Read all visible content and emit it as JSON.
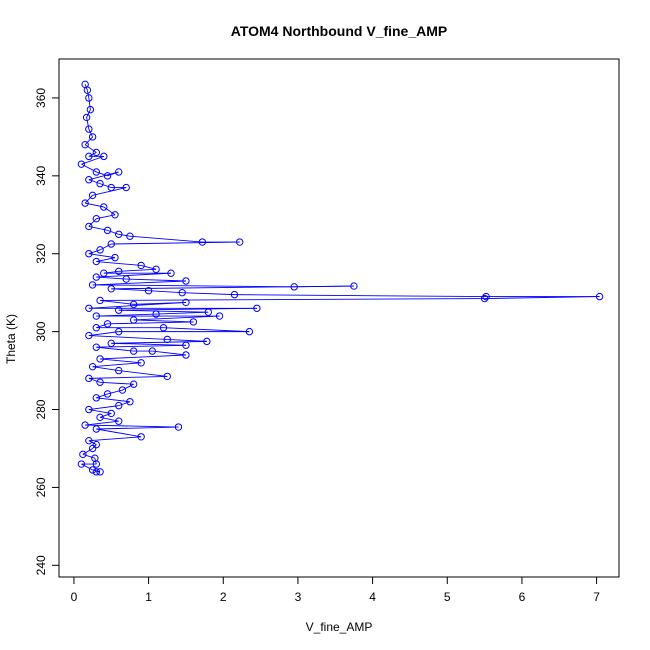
{
  "chart_data": {
    "type": "scatter",
    "title": "ATOM4 Northbound V_fine_AMP",
    "xlabel": "V_fine_AMP",
    "ylabel": "Theta (K)",
    "xlim": [
      -0.2,
      7.3
    ],
    "ylim": [
      237,
      370
    ],
    "xticks": [
      0,
      1,
      2,
      3,
      4,
      5,
      6,
      7
    ],
    "yticks": [
      240,
      260,
      280,
      300,
      320,
      340,
      360
    ],
    "series_color": "#0000ff",
    "marker": "open-circle",
    "connected": true,
    "points": [
      [
        0.15,
        363.5
      ],
      [
        0.18,
        362
      ],
      [
        0.2,
        360
      ],
      [
        0.22,
        357
      ],
      [
        0.17,
        355
      ],
      [
        0.2,
        352
      ],
      [
        0.25,
        350
      ],
      [
        0.15,
        348
      ],
      [
        0.3,
        346
      ],
      [
        0.2,
        345
      ],
      [
        0.4,
        345
      ],
      [
        0.1,
        343
      ],
      [
        0.3,
        341
      ],
      [
        0.45,
        340
      ],
      [
        0.6,
        341
      ],
      [
        0.2,
        339
      ],
      [
        0.35,
        338
      ],
      [
        0.5,
        337
      ],
      [
        0.7,
        337
      ],
      [
        0.25,
        335
      ],
      [
        0.15,
        333
      ],
      [
        0.4,
        332
      ],
      [
        0.55,
        330
      ],
      [
        0.3,
        329
      ],
      [
        0.2,
        327
      ],
      [
        0.45,
        326
      ],
      [
        0.6,
        325
      ],
      [
        0.75,
        324.5
      ],
      [
        1.72,
        323
      ],
      [
        2.22,
        323
      ],
      [
        0.5,
        322.5
      ],
      [
        0.35,
        321
      ],
      [
        0.2,
        320
      ],
      [
        0.55,
        319
      ],
      [
        0.3,
        318
      ],
      [
        0.9,
        317
      ],
      [
        1.1,
        316
      ],
      [
        0.6,
        315.5
      ],
      [
        0.4,
        315
      ],
      [
        1.3,
        315
      ],
      [
        0.3,
        314
      ],
      [
        0.7,
        313.5
      ],
      [
        1.5,
        313
      ],
      [
        0.25,
        312
      ],
      [
        2.95,
        311.5
      ],
      [
        3.75,
        311.7
      ],
      [
        0.5,
        311
      ],
      [
        1.0,
        310.5
      ],
      [
        1.45,
        310
      ],
      [
        2.15,
        309.5
      ],
      [
        5.52,
        309
      ],
      [
        7.04,
        309
      ],
      [
        5.5,
        308.5
      ],
      [
        0.35,
        308
      ],
      [
        0.8,
        307
      ],
      [
        1.5,
        307.5
      ],
      [
        0.2,
        306
      ],
      [
        2.45,
        306
      ],
      [
        0.6,
        305.5
      ],
      [
        1.8,
        305
      ],
      [
        1.1,
        304.5
      ],
      [
        0.3,
        304
      ],
      [
        1.95,
        304
      ],
      [
        0.8,
        303
      ],
      [
        1.6,
        302.5
      ],
      [
        0.45,
        302
      ],
      [
        0.3,
        301
      ],
      [
        1.2,
        301
      ],
      [
        2.35,
        300
      ],
      [
        0.6,
        300
      ],
      [
        0.2,
        299
      ],
      [
        1.25,
        298
      ],
      [
        1.78,
        297.5
      ],
      [
        0.5,
        297
      ],
      [
        1.5,
        296.5
      ],
      [
        0.3,
        296
      ],
      [
        0.8,
        295
      ],
      [
        1.05,
        295
      ],
      [
        1.5,
        294
      ],
      [
        0.35,
        293
      ],
      [
        0.9,
        292
      ],
      [
        0.25,
        291
      ],
      [
        0.6,
        290
      ],
      [
        1.25,
        288.5
      ],
      [
        0.2,
        288
      ],
      [
        0.35,
        287
      ],
      [
        0.8,
        286.5
      ],
      [
        0.65,
        285
      ],
      [
        0.45,
        284
      ],
      [
        0.3,
        283
      ],
      [
        0.75,
        282
      ],
      [
        0.6,
        281
      ],
      [
        0.2,
        280
      ],
      [
        0.5,
        279
      ],
      [
        0.35,
        278
      ],
      [
        0.6,
        277
      ],
      [
        0.15,
        276
      ],
      [
        1.4,
        275.5
      ],
      [
        0.3,
        275
      ],
      [
        0.9,
        273
      ],
      [
        0.2,
        272
      ],
      [
        0.3,
        271
      ],
      [
        0.25,
        270
      ],
      [
        0.12,
        268.5
      ],
      [
        0.28,
        267.5
      ],
      [
        0.3,
        266
      ],
      [
        0.1,
        266
      ],
      [
        0.25,
        264.5
      ],
      [
        0.35,
        264
      ],
      [
        0.3,
        264
      ]
    ]
  }
}
